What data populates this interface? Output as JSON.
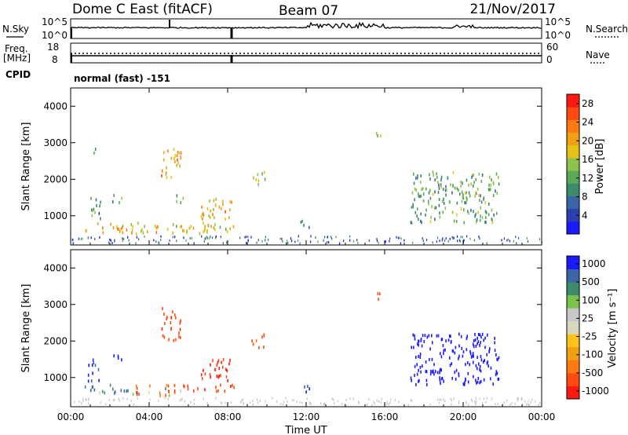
{
  "header": {
    "left_title": "Dome C East (fitACF)",
    "center_title": "Beam 07",
    "right_title": "21/Nov/2017"
  },
  "top_strip": {
    "nsky_label": "N.Sky",
    "nsearch_label": "N.Search",
    "left_top": "10^5",
    "left_bottom": "10^0",
    "right_top": "10^5",
    "right_bottom": "10^0",
    "freq_label_1": "Freq.",
    "freq_label_2": "[MHz]",
    "freq_top": "18",
    "freq_bottom": "8",
    "nave_label": "Nave",
    "nave_top": "60",
    "nave_bottom": "0",
    "cpid_label": "CPID",
    "cpid_value": "normal (fast) -151"
  },
  "colors": {
    "power_scale": [
      "#1a1aff",
      "#2e3fb0",
      "#3a66a8",
      "#3c8c6b",
      "#5aa85a",
      "#8fc24a",
      "#e8c21a",
      "#f0a010",
      "#ff7a10",
      "#ff4a10",
      "#ff1a10"
    ],
    "velocity_scale": [
      "#ff1a10",
      "#ff4a10",
      "#ff7a10",
      "#f0a010",
      "#ffc21a",
      "#d8d8c0",
      "#c8c8c8",
      "#7ac24a",
      "#3c8c6b",
      "#3a66a8",
      "#1a1aff"
    ]
  },
  "chart_data": [
    {
      "type": "heatmap",
      "title": "",
      "ylabel": "Slant Range [km]",
      "xlim": [
        "00:00",
        "24:00"
      ],
      "ylim": [
        200,
        4500
      ],
      "y_ticks": [
        "1000",
        "2000",
        "3000",
        "4000"
      ],
      "x_ticks": [
        "00:00",
        "04:00",
        "08:00",
        "12:00",
        "16:00",
        "20:00",
        "00:00"
      ],
      "colorbar": {
        "label": "Power [dB]",
        "ticks": [
          "4",
          "8",
          "12",
          "16",
          "20",
          "24",
          "28"
        ],
        "range": [
          0,
          30
        ]
      },
      "echo_regions": [
        {
          "t0": 0.7,
          "t1": 8.3,
          "r0": 500,
          "r1": 800,
          "level": 18
        },
        {
          "t0": 0.8,
          "t1": 1.5,
          "r0": 900,
          "r1": 1500,
          "level": 10
        },
        {
          "t0": 1.0,
          "t1": 1.3,
          "r0": 2700,
          "r1": 2900,
          "level": 8
        },
        {
          "t0": 2.0,
          "t1": 2.6,
          "r0": 1350,
          "r1": 1600,
          "level": 10
        },
        {
          "t0": 4.6,
          "t1": 5.6,
          "r0": 2000,
          "r1": 2900,
          "level": 20
        },
        {
          "t0": 5.3,
          "t1": 5.9,
          "r0": 1350,
          "r1": 1600,
          "level": 10
        },
        {
          "t0": 6.6,
          "t1": 8.2,
          "r0": 900,
          "r1": 1500,
          "level": 20
        },
        {
          "t0": 9.2,
          "t1": 9.9,
          "r0": 1800,
          "r1": 2200,
          "level": 14
        },
        {
          "t0": 11.7,
          "t1": 12.2,
          "r0": 600,
          "r1": 900,
          "level": 12
        },
        {
          "t0": 15.5,
          "t1": 15.8,
          "r0": 3100,
          "r1": 3500,
          "level": 14
        },
        {
          "t0": 17.3,
          "t1": 21.8,
          "r0": 800,
          "r1": 2200,
          "level": 12
        }
      ]
    },
    {
      "type": "heatmap",
      "title": "",
      "ylabel": "Slant Range [km]",
      "xlabel": "Time UT",
      "xlim": [
        "00:00",
        "24:00"
      ],
      "ylim": [
        200,
        4500
      ],
      "y_ticks": [
        "1000",
        "2000",
        "3000",
        "4000"
      ],
      "x_ticks": [
        "00:00",
        "04:00",
        "08:00",
        "12:00",
        "16:00",
        "20:00",
        "00:00"
      ],
      "colorbar": {
        "label": "Velocity [m s⁻¹]",
        "ticks": [
          "1000",
          "500",
          "100",
          "25",
          "-25",
          "-100",
          "-500",
          "-1000"
        ],
        "range": [
          -1000,
          1000
        ]
      },
      "echo_regions": [
        {
          "t0": 0.7,
          "t1": 3.0,
          "r0": 550,
          "r1": 800,
          "level": 100
        },
        {
          "t0": 3.0,
          "t1": 5.6,
          "r0": 500,
          "r1": 800,
          "level": -50
        },
        {
          "t0": 5.6,
          "t1": 8.3,
          "r0": 600,
          "r1": 800,
          "level": -200
        },
        {
          "t0": 0.8,
          "t1": 1.5,
          "r0": 900,
          "r1": 1500,
          "level": 300
        },
        {
          "t0": 2.0,
          "t1": 2.6,
          "r0": 1350,
          "r1": 1600,
          "level": 400
        },
        {
          "t0": 4.6,
          "t1": 5.6,
          "r0": 2000,
          "r1": 2900,
          "level": -200
        },
        {
          "t0": 6.6,
          "t1": 8.2,
          "r0": 900,
          "r1": 1500,
          "level": -300
        },
        {
          "t0": 9.2,
          "t1": 9.9,
          "r0": 1800,
          "r1": 2200,
          "level": -150
        },
        {
          "t0": 11.7,
          "t1": 12.2,
          "r0": 600,
          "r1": 900,
          "level": 300
        },
        {
          "t0": 15.5,
          "t1": 15.8,
          "r0": 3100,
          "r1": 3500,
          "level": -200
        },
        {
          "t0": 17.3,
          "t1": 21.8,
          "r0": 800,
          "r1": 2200,
          "level": 400
        }
      ]
    }
  ]
}
